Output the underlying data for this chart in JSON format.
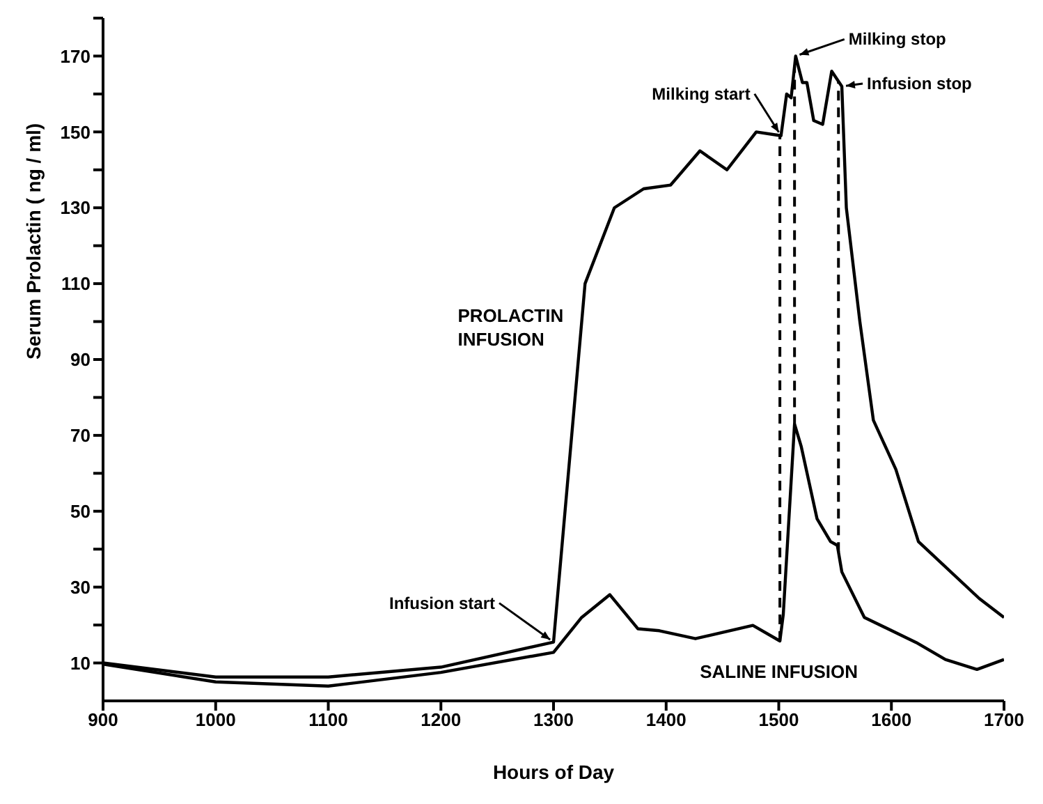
{
  "chart_data": {
    "type": "line",
    "xlabel": "Hours of Day",
    "ylabel": "Serum Prolactin ( ng / ml)",
    "xlim": [
      900,
      1700
    ],
    "xticks": [
      900,
      1000,
      1100,
      1200,
      1300,
      1400,
      1500,
      1600,
      1700
    ],
    "ylim": [
      0,
      180
    ],
    "yticks": [
      10,
      {
        "value": 20,
        "label": null
      },
      30,
      {
        "value": 40,
        "label": null
      },
      50,
      {
        "value": 60,
        "label": null
      },
      70,
      {
        "value": 80,
        "label": null
      },
      90,
      {
        "value": 100,
        "label": null
      },
      110,
      {
        "value": 120,
        "label": null
      },
      130,
      {
        "value": 140,
        "label": null
      },
      150,
      {
        "value": 160,
        "label": null
      },
      170,
      {
        "value": 180,
        "label": null
      }
    ],
    "marker": "none",
    "line_style": "solid",
    "series": [
      {
        "name": "PROLACTIN INFUSION",
        "color": "#000000",
        "x": [
          900,
          1000,
          1100,
          1200,
          1300,
          1328,
          1354,
          1380,
          1404,
          1430,
          1454,
          1480,
          1502,
          1507,
          1511,
          1515,
          1521,
          1525,
          1531,
          1539,
          1547,
          1556,
          1560,
          1572,
          1584,
          1604,
          1624,
          1678,
          1700
        ],
        "values": [
          10,
          6.3,
          6.3,
          8.9,
          15.5,
          110,
          130,
          135,
          136,
          145,
          140,
          150,
          149,
          160,
          159,
          170,
          163,
          163,
          153,
          152,
          166,
          162,
          130,
          100,
          74,
          61,
          42,
          27,
          22
        ]
      },
      {
        "name": "SALINE INFUSION",
        "color": "#000000",
        "x": [
          900,
          1000,
          1100,
          1200,
          1300,
          1325,
          1350,
          1375,
          1394,
          1426,
          1477,
          1501,
          1504,
          1514,
          1520,
          1534,
          1546,
          1552,
          1556,
          1576,
          1622,
          1648,
          1676,
          1700
        ],
        "values": [
          9.7,
          5,
          3.9,
          7.5,
          12.8,
          22,
          28,
          19,
          18.5,
          16.4,
          19.9,
          15.8,
          22.8,
          73,
          67,
          48,
          42,
          41,
          34,
          22,
          15.4,
          10.9,
          8.3,
          10.9
        ]
      }
    ],
    "ref_lines": [
      {
        "axis": "x",
        "value": 1501,
        "line_style": "dashed",
        "color": "#000000"
      },
      {
        "axis": "x",
        "value": 1514,
        "line_style": "dashed",
        "color": "#000000"
      },
      {
        "axis": "x",
        "value": 1553,
        "line_style": "dashed",
        "color": "#000000"
      }
    ],
    "annotations": [
      {
        "text": "Infusion start",
        "x": 1300,
        "y": 15.5
      },
      {
        "text": "Milking start",
        "x": 1502,
        "y": 149
      },
      {
        "text": "Milking stop",
        "x": 1515,
        "y": 170
      },
      {
        "text": "Infusion stop",
        "x": 1556,
        "y": 162
      }
    ]
  }
}
